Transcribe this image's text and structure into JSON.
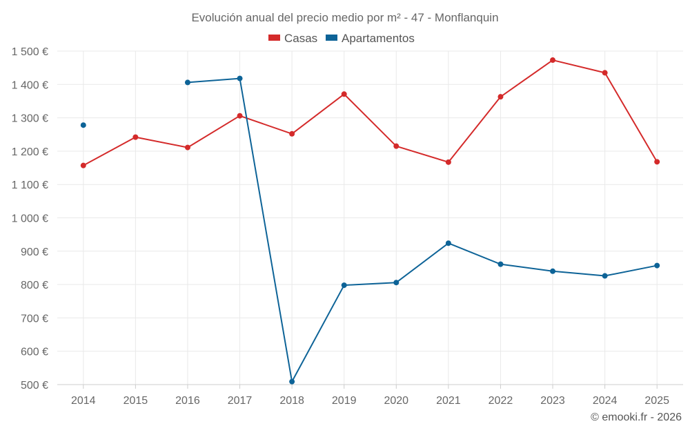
{
  "chart_data": {
    "type": "line",
    "title": "Evolución anual del precio medio por m² - 47 - Monflanquin",
    "categories": [
      "2014",
      "2015",
      "2016",
      "2017",
      "2018",
      "2019",
      "2020",
      "2021",
      "2022",
      "2023",
      "2024",
      "2025"
    ],
    "ylim": [
      500,
      1500
    ],
    "yticks": [
      500,
      600,
      700,
      800,
      900,
      1000,
      1100,
      1200,
      1300,
      1400,
      1500
    ],
    "ytick_labels": [
      "500 €",
      "600 €",
      "700 €",
      "800 €",
      "900 €",
      "1 000 €",
      "1 100 €",
      "1 200 €",
      "1 300 €",
      "1 400 €",
      "1 500 €"
    ],
    "legend_position": "top-center",
    "grid": true,
    "series": [
      {
        "name": "Casas",
        "color": "#d42a2a",
        "values": [
          1157,
          1242,
          1211,
          1306,
          1252,
          1371,
          1215,
          1167,
          1363,
          1473,
          1435,
          1168
        ]
      },
      {
        "name": "Apartamentos",
        "color": "#0d6397",
        "values": [
          1278,
          null,
          1406,
          1418,
          509,
          798,
          806,
          924,
          861,
          840,
          826,
          857
        ]
      }
    ],
    "credit": "© emooki.fr - 2026"
  }
}
